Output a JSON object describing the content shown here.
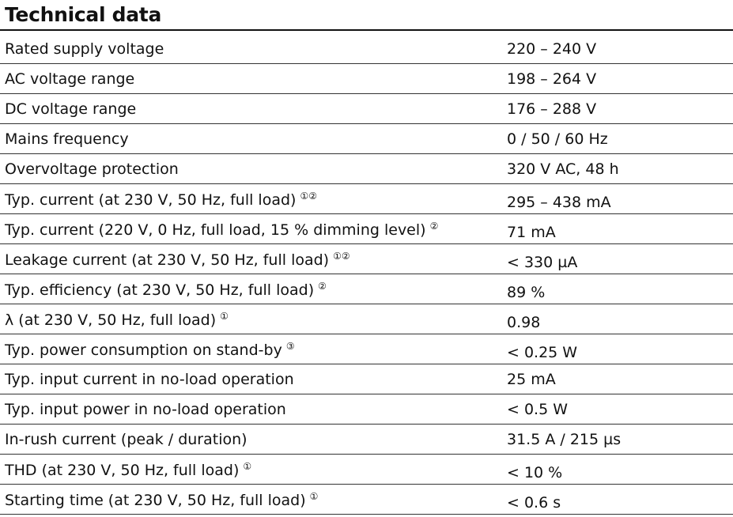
{
  "title": "Technical data",
  "table": {
    "rows": [
      {
        "label": "Rated supply voltage",
        "value": "220 – 240 V"
      },
      {
        "label": "AC voltage range",
        "value": "198 – 264 V"
      },
      {
        "label": "DC voltage range",
        "value": "176 – 288 V"
      },
      {
        "label": "Mains frequency",
        "value": "0 / 50 / 60 Hz"
      },
      {
        "label": "Overvoltage protection",
        "value": "320 V AC, 48 h"
      },
      {
        "label": "Typ. current (at 230 V, 50 Hz, full load)",
        "note": "①②",
        "value": "295 – 438 mA"
      },
      {
        "label": "Typ. current (220 V, 0 Hz, full load, 15 % dimming level)",
        "note": "②",
        "value": "71 mA"
      },
      {
        "label": "Leakage current (at 230 V, 50 Hz, full load)",
        "note": "①②",
        "value": "< 330 µA"
      },
      {
        "label": "Typ. efficiency (at 230 V, 50 Hz, full load)",
        "note": "②",
        "value": "89 %"
      },
      {
        "label": "λ (at 230 V, 50 Hz, full load)",
        "note": "①",
        "value": "0.98"
      },
      {
        "label": "Typ. power consumption on stand-by",
        "note": "③",
        "value": "< 0.25 W"
      },
      {
        "label": "Typ. input current in no-load operation",
        "value": "25 mA"
      },
      {
        "label": "Typ. input power in no-load operation",
        "value": "< 0.5 W"
      },
      {
        "label": "In-rush current (peak / duration)",
        "value": "31.5 A / 215 µs"
      },
      {
        "label": "THD (at 230 V, 50 Hz, full load)",
        "note": "①",
        "value": "< 10 %"
      },
      {
        "label": "Starting time (at 230 V, 50 Hz, full load)",
        "note": "①",
        "value": "< 0.6 s"
      }
    ]
  }
}
